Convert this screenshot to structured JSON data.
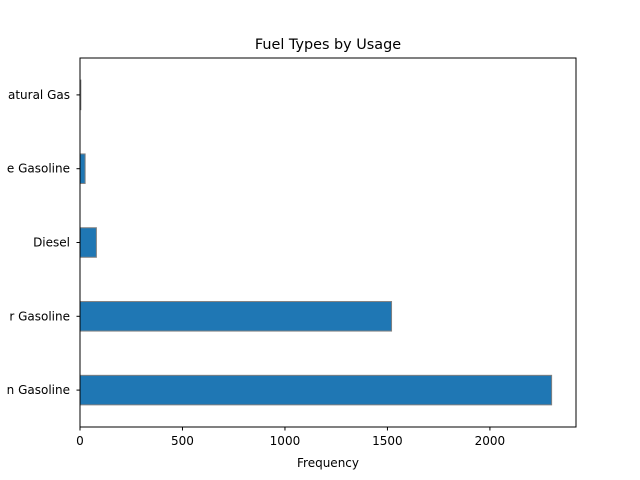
{
  "chart_data": {
    "type": "bar",
    "orientation": "horizontal",
    "title": "Fuel Types by Usage",
    "xlabel": "Frequency",
    "ylabel": "",
    "categories": [
      "Premium Gasoline",
      "Regular Gasoline",
      "Diesel",
      "Midgrade Gasoline",
      "Natural Gas"
    ],
    "category_labels_visible": [
      "n Gasoline",
      "r Gasoline",
      "Diesel",
      "e Gasoline",
      "atural Gas"
    ],
    "values": [
      2301,
      1520,
      80,
      25,
      4
    ],
    "xlim": [
      0,
      2420
    ],
    "xticks": [
      0,
      500,
      1000,
      1500,
      2000
    ],
    "grid": false,
    "bar_color": "#1f77b4",
    "edge_color": "#808080"
  }
}
